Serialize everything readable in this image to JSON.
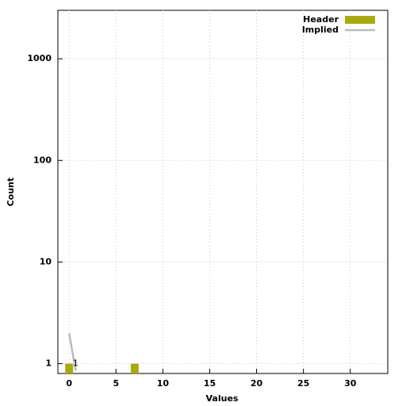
{
  "chart_data": {
    "type": "bar",
    "xlabel": "Values",
    "ylabel": "Count",
    "xlim": [
      -1.2,
      34
    ],
    "ylim": [
      0.8,
      3000
    ],
    "log_y": true,
    "grid": true,
    "legend": "upper right",
    "xticks": [
      0,
      5,
      10,
      15,
      20,
      25,
      30
    ],
    "yticks": [
      1,
      10,
      100,
      1000
    ],
    "series": [
      {
        "name": "Header",
        "type": "bar",
        "color": "#a9a90f",
        "x": [
          0,
          7
        ],
        "values": [
          1,
          1
        ]
      },
      {
        "name": "Implied",
        "type": "line",
        "color": "#bbbbbb",
        "x": [
          0,
          0.7
        ],
        "values": [
          2,
          0.85
        ]
      }
    ],
    "annotations": [
      {
        "text": "1",
        "x": 0.4,
        "y": 1
      }
    ]
  }
}
